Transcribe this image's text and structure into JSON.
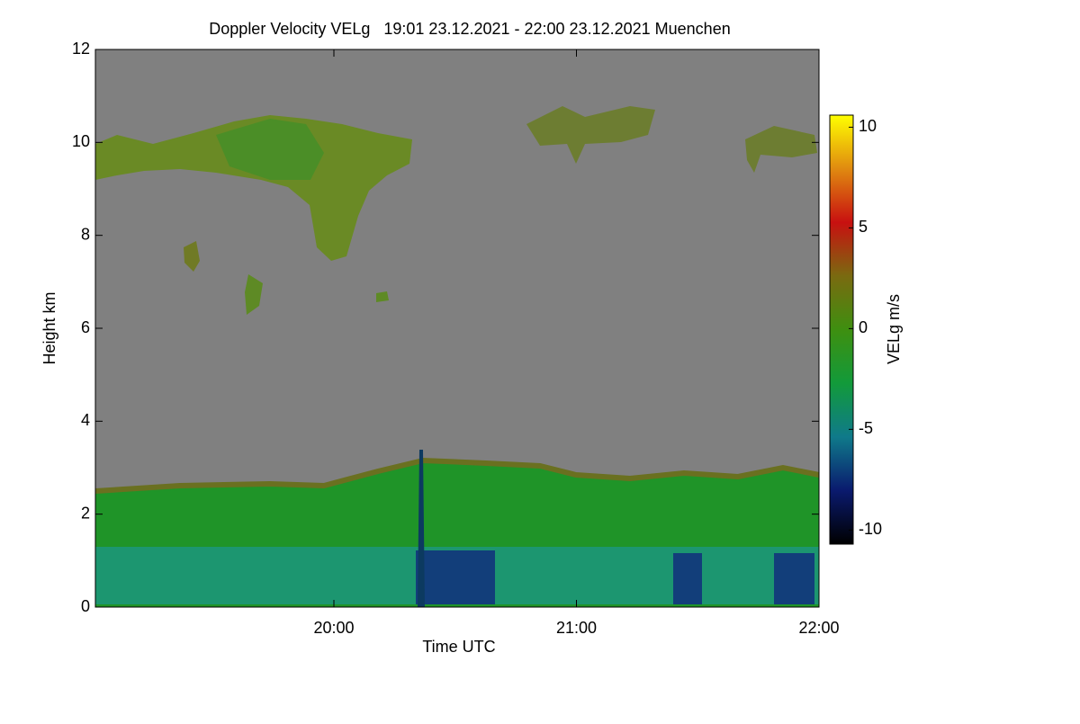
{
  "chart_data": {
    "type": "heatmap",
    "title": "Doppler Velocity VELg   19:01 23.12.2021 - 22:00 23.12.2021 Muenchen",
    "x_label": "Time UTC",
    "y_label": "Height km",
    "colorbar_label": "VELg m/s",
    "xlim": [
      19.0167,
      22.0
    ],
    "xticks": [
      {
        "value": 20,
        "label": "20:00"
      },
      {
        "value": 21,
        "label": "21:00"
      },
      {
        "value": 22,
        "label": "22:00"
      }
    ],
    "ylim": [
      0,
      12
    ],
    "yticks": [
      0,
      2,
      4,
      6,
      8,
      10,
      12
    ],
    "clim": [
      -10.7,
      10.6
    ],
    "cticks": [
      -10,
      -5,
      0,
      5,
      10
    ],
    "colormap": [
      "#000000",
      "#0a1a6e",
      "#0f7a8a",
      "#129a3a",
      "#3e8f10",
      "#7a6a10",
      "#c81010",
      "#e08a10",
      "#ffff00"
    ],
    "background": "#808080"
  }
}
